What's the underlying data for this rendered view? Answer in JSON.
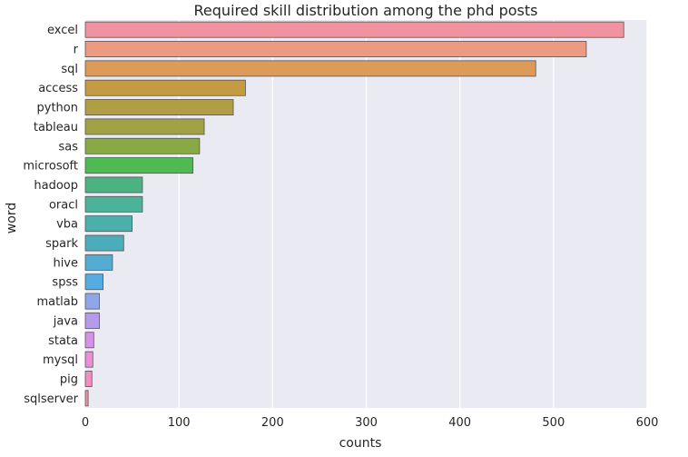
{
  "chart_data": {
    "type": "bar",
    "orientation": "horizontal",
    "title": "Required skill distribution among the phd posts",
    "xlabel": "counts",
    "ylabel": "word",
    "xlim": [
      0,
      600
    ],
    "xticks": [
      0,
      100,
      200,
      300,
      400,
      500,
      600
    ],
    "grid": true,
    "categories": [
      "excel",
      "r",
      "sql",
      "access",
      "python",
      "tableau",
      "sas",
      "microsoft",
      "hadoop",
      "oracl",
      "vba",
      "spark",
      "hive",
      "spss",
      "matlab",
      "java",
      "stata",
      "mysql",
      "pig",
      "sqlserver"
    ],
    "values": [
      575,
      535,
      481,
      171,
      158,
      127,
      122,
      115,
      61,
      61,
      50,
      41,
      29,
      19,
      15,
      15,
      9,
      8,
      7,
      3
    ],
    "colors": [
      "#f0939f",
      "#ec9a82",
      "#dd9a58",
      "#c49b42",
      "#b09e45",
      "#a0a245",
      "#88aa45",
      "#4fba51",
      "#4bb381",
      "#4bb398",
      "#4bb0a9",
      "#4cadba",
      "#55acd3",
      "#55ace0",
      "#8fa7e8",
      "#b59ceb",
      "#d891e8",
      "#ec8fd8",
      "#f08fc0",
      "#f093a8"
    ]
  }
}
